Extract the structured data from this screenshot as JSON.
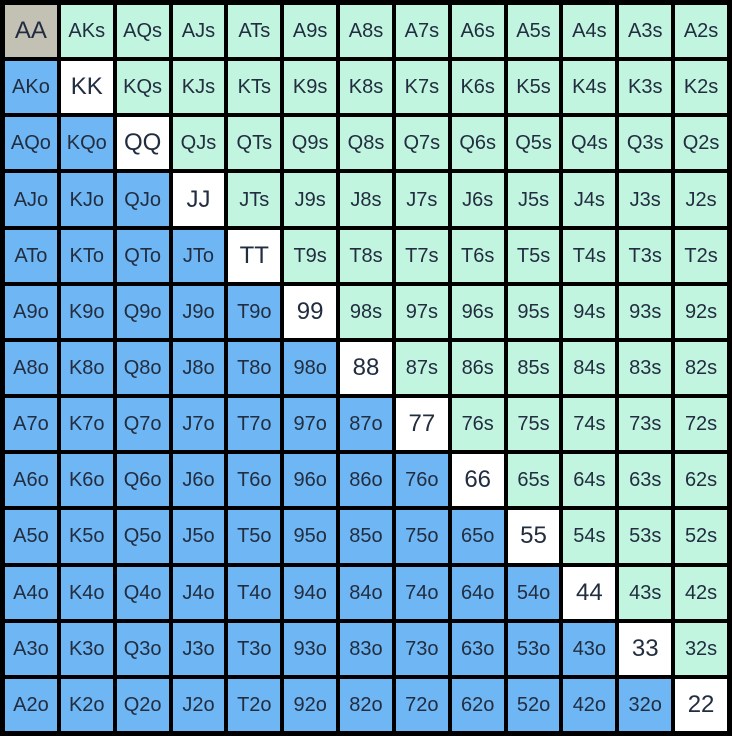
{
  "grid": {
    "ranks": [
      "A",
      "K",
      "Q",
      "J",
      "T",
      "9",
      "8",
      "7",
      "6",
      "5",
      "4",
      "3",
      "2"
    ],
    "rows": [
      [
        "AA",
        "AKs",
        "AQs",
        "AJs",
        "ATs",
        "A9s",
        "A8s",
        "A7s",
        "A6s",
        "A5s",
        "A4s",
        "A3s",
        "A2s"
      ],
      [
        "AKo",
        "KK",
        "KQs",
        "KJs",
        "KTs",
        "K9s",
        "K8s",
        "K7s",
        "K6s",
        "K5s",
        "K4s",
        "K3s",
        "K2s"
      ],
      [
        "AQo",
        "KQo",
        "QQ",
        "QJs",
        "QTs",
        "Q9s",
        "Q8s",
        "Q7s",
        "Q6s",
        "Q5s",
        "Q4s",
        "Q3s",
        "Q2s"
      ],
      [
        "AJo",
        "KJo",
        "QJo",
        "JJ",
        "JTs",
        "J9s",
        "J8s",
        "J7s",
        "J6s",
        "J5s",
        "J4s",
        "J3s",
        "J2s"
      ],
      [
        "ATo",
        "KTo",
        "QTo",
        "JTo",
        "TT",
        "T9s",
        "T8s",
        "T7s",
        "T6s",
        "T5s",
        "T4s",
        "T3s",
        "T2s"
      ],
      [
        "A9o",
        "K9o",
        "Q9o",
        "J9o",
        "T9o",
        "99",
        "98s",
        "97s",
        "96s",
        "95s",
        "94s",
        "93s",
        "92s"
      ],
      [
        "A8o",
        "K8o",
        "Q8o",
        "J8o",
        "T8o",
        "98o",
        "88",
        "87s",
        "86s",
        "85s",
        "84s",
        "83s",
        "82s"
      ],
      [
        "A7o",
        "K7o",
        "Q7o",
        "J7o",
        "T7o",
        "97o",
        "87o",
        "77",
        "76s",
        "75s",
        "74s",
        "73s",
        "72s"
      ],
      [
        "A6o",
        "K6o",
        "Q6o",
        "J6o",
        "T6o",
        "96o",
        "86o",
        "76o",
        "66",
        "65s",
        "64s",
        "63s",
        "62s"
      ],
      [
        "A5o",
        "K5o",
        "Q5o",
        "J5o",
        "T5o",
        "95o",
        "85o",
        "75o",
        "65o",
        "55",
        "54s",
        "53s",
        "52s"
      ],
      [
        "A4o",
        "K4o",
        "Q4o",
        "J4o",
        "T4o",
        "94o",
        "84o",
        "74o",
        "64o",
        "54o",
        "44",
        "43s",
        "42s"
      ],
      [
        "A3o",
        "K3o",
        "Q3o",
        "J3o",
        "T3o",
        "93o",
        "83o",
        "73o",
        "63o",
        "53o",
        "43o",
        "33",
        "32s"
      ],
      [
        "A2o",
        "K2o",
        "Q2o",
        "J2o",
        "T2o",
        "92o",
        "82o",
        "72o",
        "62o",
        "52o",
        "42o",
        "32o",
        "22"
      ]
    ]
  },
  "highlighted_cell": "AA",
  "colors": {
    "background": "#000000",
    "pair_bg": "#ffffff",
    "suited_bg": "#c2f5e0",
    "offsuit_bg": "#6fb6f4",
    "highlight_bg": "#c2c1b4",
    "text": "#222d40"
  }
}
